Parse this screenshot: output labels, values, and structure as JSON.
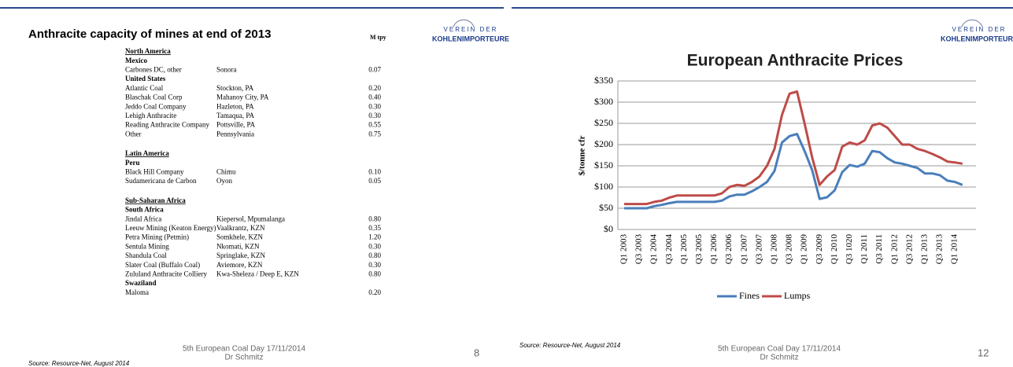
{
  "left_slide": {
    "title": "Anthracite capacity of mines at end of 2013",
    "unit": "M tpy",
    "logo": [
      "VEREIN DER",
      "KOHLENIMPORTEURE"
    ],
    "regions": [
      {
        "name": "North America",
        "countries": [
          {
            "name": "Mexico",
            "rows": [
              [
                "Carbones DC, other",
                "Sonora",
                "0.07"
              ]
            ]
          },
          {
            "name": "United States",
            "rows": [
              [
                "Atlantic Coal",
                "Stockton, PA",
                "0.20"
              ],
              [
                "Blaschak Coal Corp",
                "Mahanoy City, PA",
                "0.40"
              ],
              [
                "Jeddo Coal Company",
                "Hazleton, PA",
                "0.30"
              ],
              [
                "Lehigh Anthracite",
                "Tamaqua, PA",
                "0.30"
              ],
              [
                "Reading Anthracite Company",
                "Pottsville, PA",
                "0.55"
              ],
              [
                "Other",
                "Pennsylvania",
                "0.75"
              ]
            ]
          }
        ]
      },
      {
        "name": "Latin America",
        "countries": [
          {
            "name": "Peru",
            "rows": [
              [
                "Black Hill Company",
                "Chimu",
                "0.10"
              ],
              [
                "Sudamericana de Carbon",
                "Oyon",
                "0.05"
              ]
            ]
          }
        ]
      },
      {
        "name": "Sub-Saharan Africa",
        "countries": [
          {
            "name": "South Africa",
            "rows": [
              [
                "Jindal Africa",
                "Kiepersol, Mpumalanga",
                "0.80"
              ],
              [
                "Leeuw Mining (Keaton Energy)",
                "Vaalkrantz, KZN",
                "0.35"
              ],
              [
                "Petra Mining (Petmin)",
                "Somkhele, KZN",
                "1.20"
              ],
              [
                "Sentula Mining",
                "Nkomati, KZN",
                "0.30"
              ],
              [
                "Shandula Coal",
                "Springlake, KZN",
                "0.80"
              ],
              [
                "Slater Coal (Buffalo Coal)",
                "Aviemore, KZN",
                "0.30"
              ],
              [
                "Zululand Anthracite Colliery",
                "Kwa-Sheleza / Deep E, KZN",
                "0.80"
              ]
            ]
          },
          {
            "name": "Swaziland",
            "rows": [
              [
                "Maloma",
                "",
                "0.20"
              ]
            ]
          }
        ]
      }
    ],
    "footer": [
      "5th European Coal Day 17/11/2014",
      "Dr Schmitz"
    ],
    "source": "Source: Resource-Net, August 2014",
    "page_number": "8"
  },
  "right_slide": {
    "logo": [
      "VEREIN DER",
      "KOHLENIMPORTEURE"
    ],
    "footer": [
      "5th European Coal Day 17/11/2014",
      "Dr Schmitz"
    ],
    "source": "Source: Resource-Net, August 2014",
    "page_number": "12"
  },
  "chart_data": {
    "type": "line",
    "title": "European Anthracite Prices",
    "y_label": "$/tonne cfr",
    "categories": [
      "Q1 2003",
      null,
      "Q3 2003",
      null,
      "Q1 2004",
      null,
      "Q3 2004",
      null,
      "Q1 2005",
      null,
      "Q3 2005",
      null,
      "Q1 2006",
      null,
      "Q3 2006",
      null,
      "Q1 2007",
      null,
      "Q3 2007",
      null,
      "Q1 2008",
      null,
      "Q3 2008",
      null,
      "Q1 2009",
      null,
      "Q3 2009",
      null,
      "Q1 2010",
      null,
      "Q3 1020",
      null,
      "Q1 2011",
      null,
      "Q3 2011",
      null,
      "Q1 2012",
      null,
      "Q3 2012",
      null,
      "Q1 2013",
      null,
      "Q3 2013",
      null,
      "Q1 2014",
      null
    ],
    "series": [
      {
        "name": "Fines",
        "color": "#4a7ebb",
        "values": [
          50,
          50,
          50,
          50,
          55,
          58,
          62,
          65,
          65,
          65,
          65,
          65,
          65,
          68,
          78,
          82,
          82,
          90,
          100,
          112,
          138,
          205,
          220,
          225,
          185,
          140,
          72,
          76,
          92,
          135,
          152,
          148,
          155,
          185,
          182,
          168,
          158,
          155,
          150,
          145,
          132,
          132,
          128,
          115,
          112,
          105
        ]
      },
      {
        "name": "Lumps",
        "color": "#be4b48",
        "values": [
          60,
          60,
          60,
          60,
          65,
          68,
          75,
          80,
          80,
          80,
          80,
          80,
          80,
          85,
          100,
          105,
          103,
          112,
          125,
          150,
          190,
          270,
          320,
          325,
          250,
          170,
          105,
          125,
          140,
          195,
          205,
          200,
          210,
          245,
          250,
          240,
          220,
          200,
          200,
          190,
          185,
          178,
          170,
          160,
          158,
          155
        ]
      }
    ],
    "ylim": [
      0,
      350
    ],
    "yticks": [
      {
        "value": 0,
        "label": "$0"
      },
      {
        "value": 50,
        "label": "$50"
      },
      {
        "value": 100,
        "label": "$100"
      },
      {
        "value": 150,
        "label": "$150"
      },
      {
        "value": 200,
        "label": "$200"
      },
      {
        "value": 250,
        "label": "$250"
      },
      {
        "value": 300,
        "label": "$300"
      },
      {
        "value": 350,
        "label": "$350"
      }
    ],
    "grid": true,
    "legend": "bottom"
  }
}
